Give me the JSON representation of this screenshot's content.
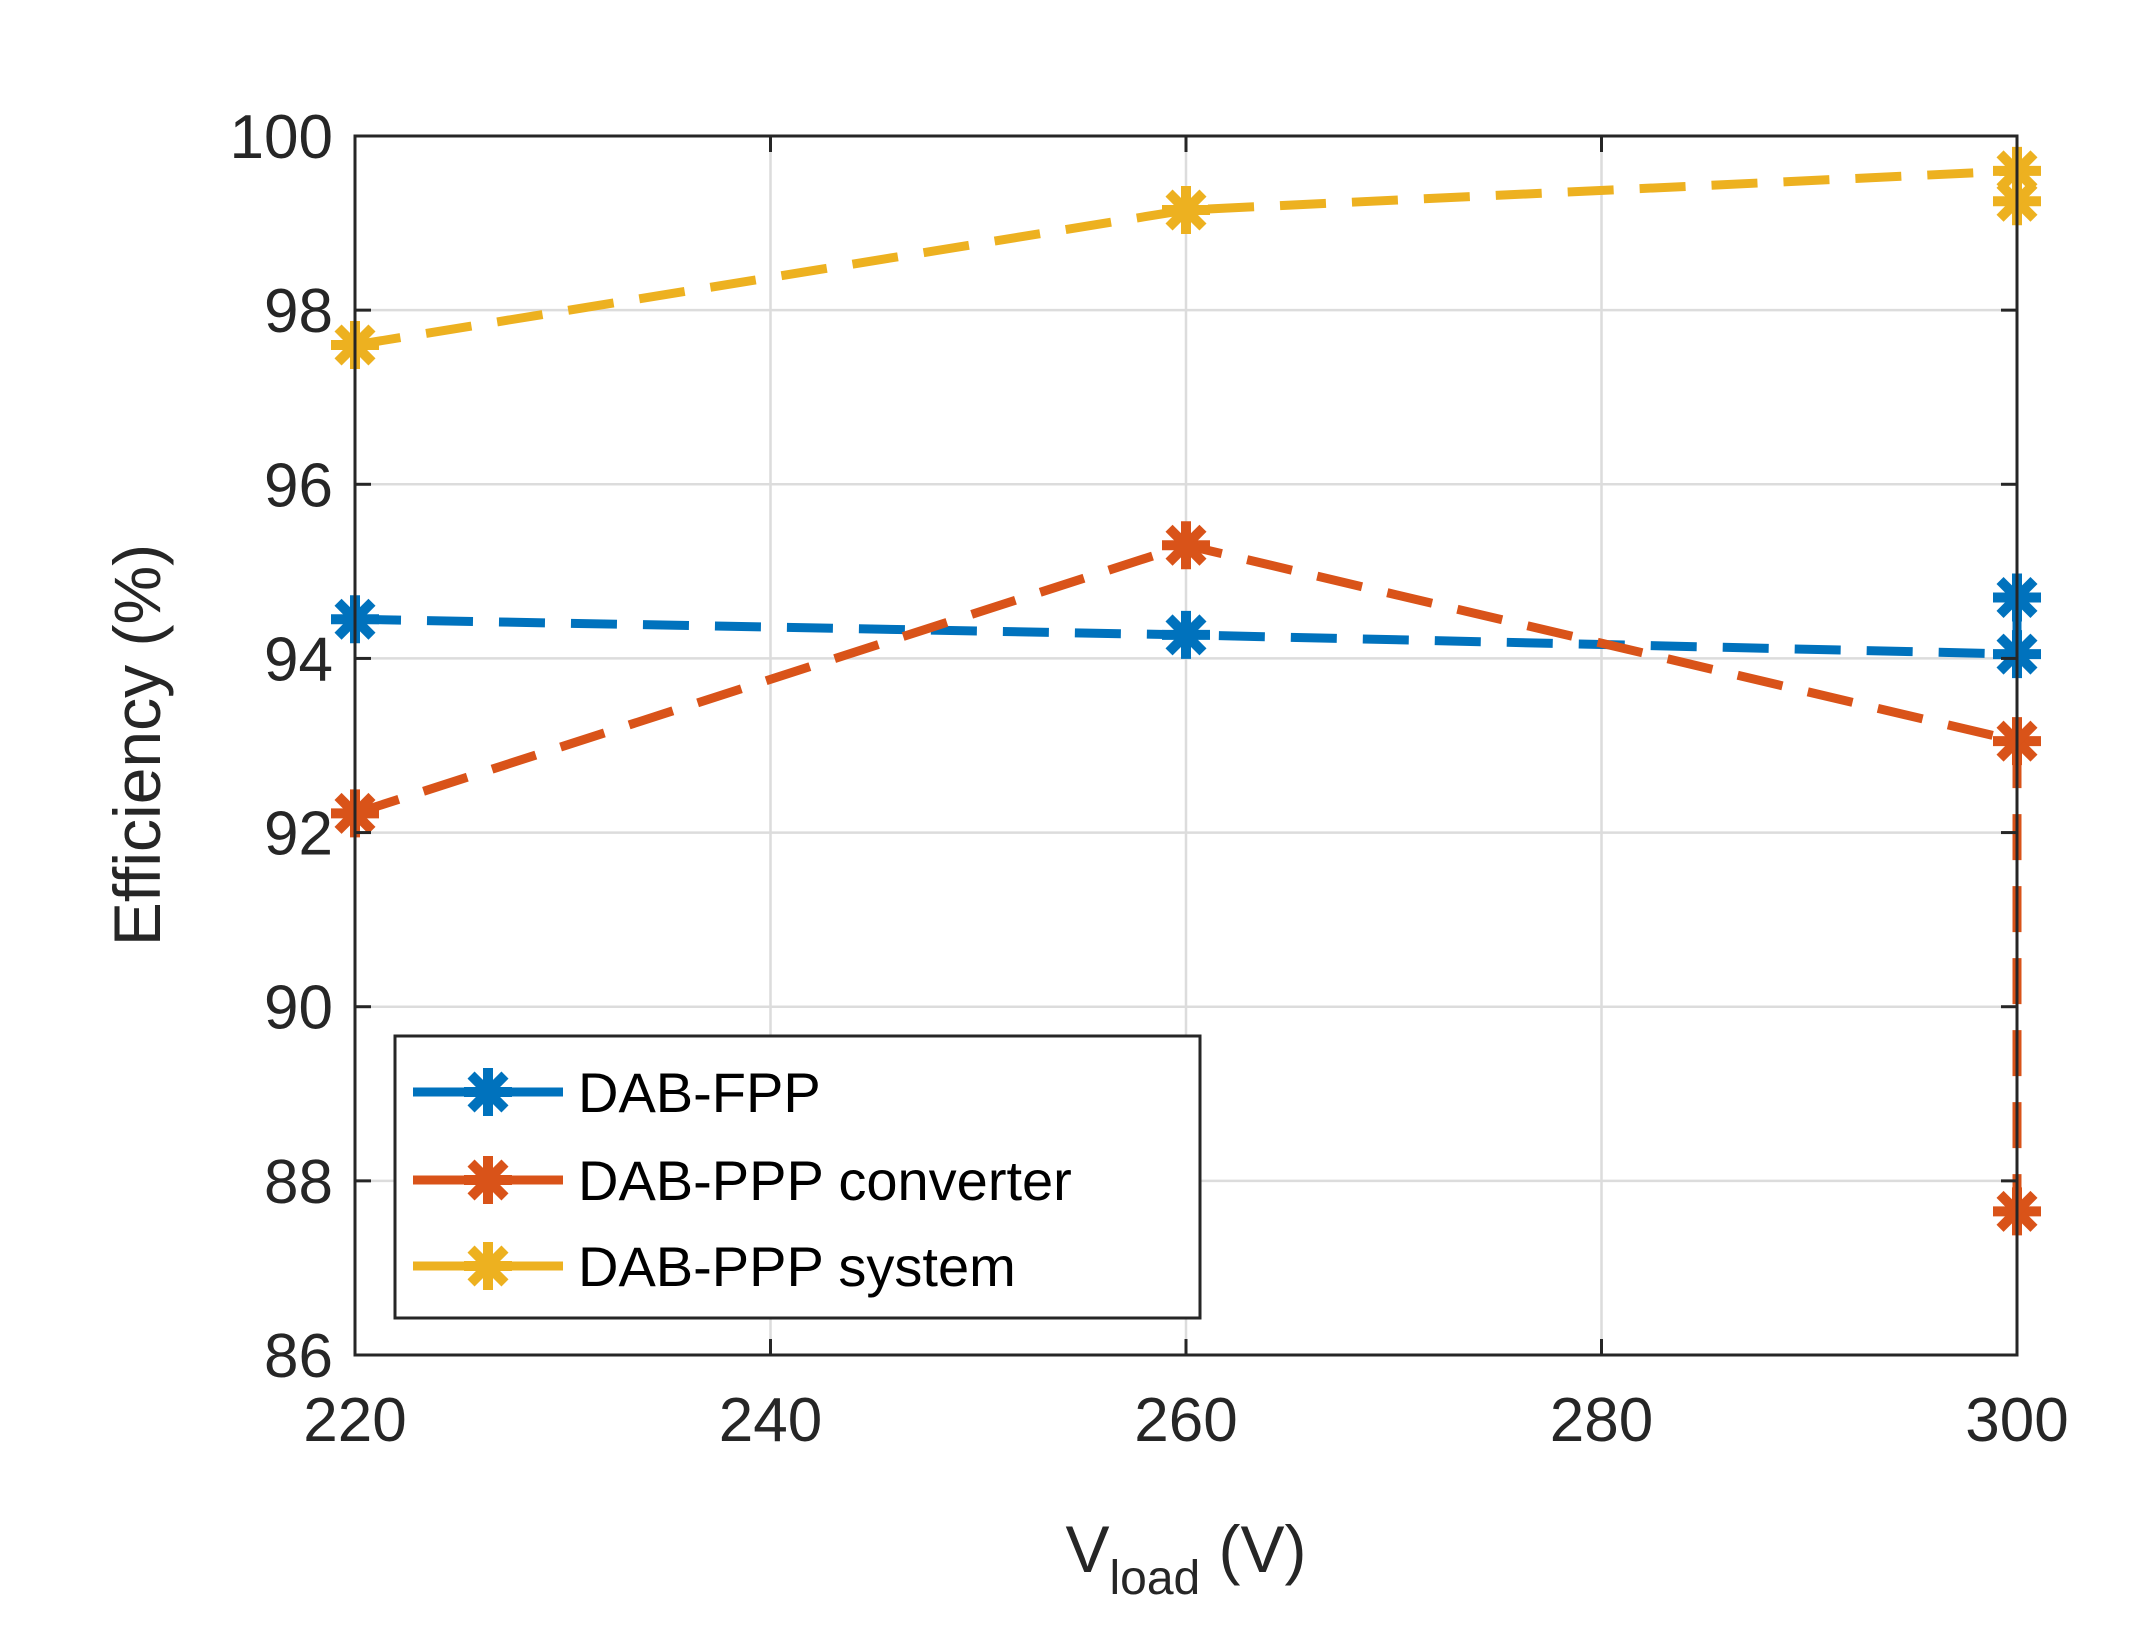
{
  "chart_data": {
    "type": "line",
    "title": "",
    "xlabel_main": "V",
    "xlabel_sub": "load",
    "xlabel_unit": " (V)",
    "ylabel": "Efficiency (%)",
    "xlim": [
      220,
      300
    ],
    "ylim": [
      86,
      100
    ],
    "xticks": [
      220,
      240,
      260,
      280,
      300
    ],
    "yticks": [
      86,
      88,
      90,
      92,
      94,
      96,
      98,
      100
    ],
    "xtick_labels": [
      "220",
      "240",
      "260",
      "280",
      "300"
    ],
    "ytick_labels": [
      "86",
      "88",
      "90",
      "92",
      "94",
      "96",
      "98",
      "100"
    ],
    "grid": true,
    "legend_location": "bottom-left",
    "series": [
      {
        "name": "DAB-FPP",
        "color": "#0072BD",
        "marker": "asterisk",
        "x": [
          220,
          260,
          300,
          300
        ],
        "y": [
          94.45,
          94.27,
          94.05,
          94.7
        ]
      },
      {
        "name": "DAB-PPP converter",
        "color": "#D95319",
        "marker": "asterisk",
        "x": [
          220,
          260,
          300,
          300
        ],
        "y": [
          92.22,
          95.3,
          93.05,
          87.65
        ]
      },
      {
        "name": "DAB-PPP system",
        "color": "#EDB120",
        "marker": "asterisk",
        "x": [
          220,
          260,
          300,
          300
        ],
        "y": [
          97.6,
          99.15,
          99.6,
          99.25
        ]
      }
    ]
  }
}
